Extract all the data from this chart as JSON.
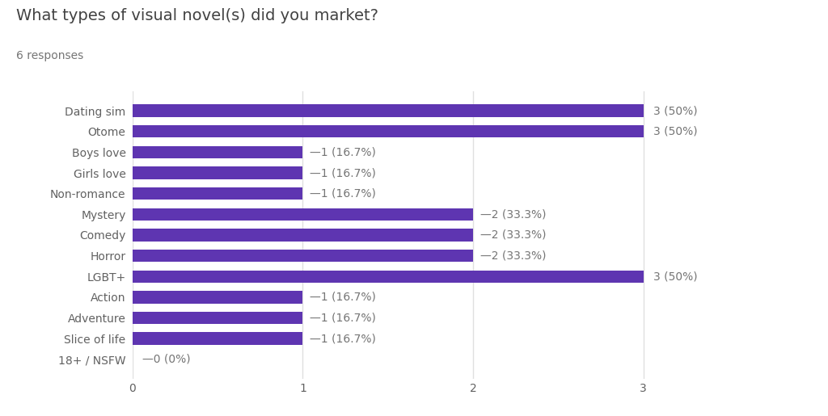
{
  "title": "What types of visual novel(s) did you market?",
  "subtitle": "6 responses",
  "categories": [
    "Dating sim",
    "Otome",
    "Boys love",
    "Girls love",
    "Non-romance",
    "Mystery",
    "Comedy",
    "Horror",
    "LGBT+",
    "Action",
    "Adventure",
    "Slice of life",
    "18+ / NSFW"
  ],
  "values": [
    3,
    3,
    1,
    1,
    1,
    2,
    2,
    2,
    3,
    1,
    1,
    1,
    0
  ],
  "labels": [
    "3 (50%)",
    "3 (50%)",
    "1 (16.7%)",
    "1 (16.7%)",
    "1 (16.7%)",
    "2 (33.3%)",
    "2 (33.3%)",
    "2 (33.3%)",
    "3 (50%)",
    "1 (16.7%)",
    "1 (16.7%)",
    "1 (16.7%)",
    "0 (0%)"
  ],
  "bar_color": "#5e35b1",
  "background_color": "#ffffff",
  "plot_bg_color": "#ffffff",
  "grid_color": "#e0e0e0",
  "title_fontsize": 14,
  "subtitle_fontsize": 10,
  "label_fontsize": 10,
  "tick_fontsize": 10,
  "xlim": [
    0,
    3.5
  ],
  "xticks": [
    0,
    1,
    2,
    3
  ],
  "bar_height": 0.6,
  "title_color": "#424242",
  "subtitle_color": "#757575",
  "tick_label_color": "#616161",
  "value_label_color": "#757575"
}
